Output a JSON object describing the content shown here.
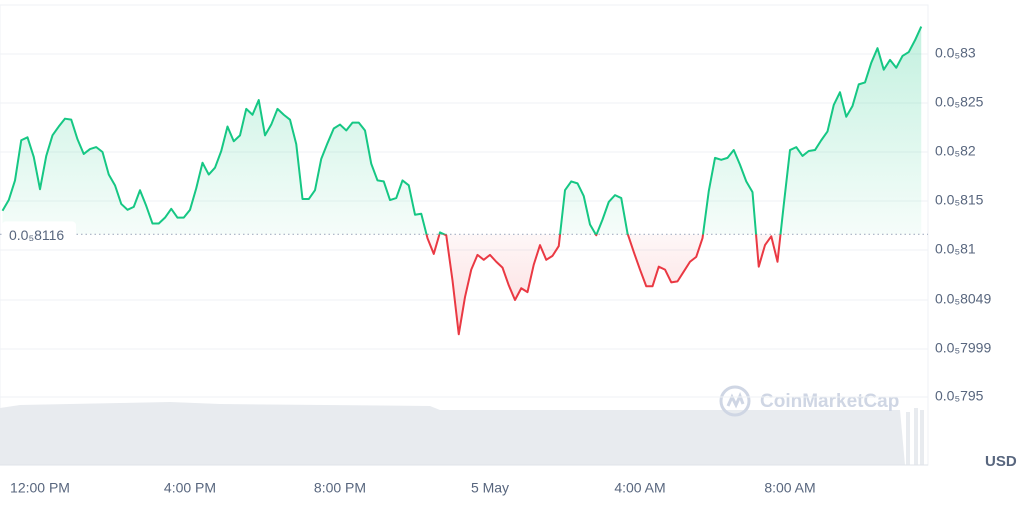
{
  "chart_data": {
    "type": "line",
    "y_label": "USD",
    "watermark": "CoinMarketCap",
    "up_color": "#16c784",
    "down_color": "#ea3943",
    "grid": true,
    "reference": {
      "value": 8.116e-06,
      "label": "0.0₅8116"
    },
    "ylim": [
      7.95e-06,
      8.35e-06
    ],
    "yticks": [
      {
        "value": 8.3e-06,
        "label": "0.0₅83"
      },
      {
        "value": 8.25e-06,
        "label": "0.0₅825"
      },
      {
        "value": 8.2e-06,
        "label": "0.0₅82"
      },
      {
        "value": 8.15e-06,
        "label": "0.0₅815"
      },
      {
        "value": 8.1e-06,
        "label": "0.0₅81"
      },
      {
        "value": 8.049e-06,
        "label": "0.0₅8049"
      },
      {
        "value": 7.999e-06,
        "label": "0.0₅7999"
      },
      {
        "value": 7.95e-06,
        "label": "0.0₅795"
      }
    ],
    "categories": [
      null,
      null,
      null,
      null,
      null,
      null,
      "12:00 PM",
      null,
      null,
      null,
      null,
      null,
      null,
      null,
      null,
      null,
      null,
      null,
      null,
      null,
      null,
      null,
      null,
      null,
      null,
      null,
      null,
      null,
      null,
      null,
      "4:00 PM",
      null,
      null,
      null,
      null,
      null,
      null,
      null,
      null,
      null,
      null,
      null,
      null,
      null,
      null,
      null,
      null,
      null,
      null,
      null,
      null,
      null,
      null,
      null,
      "8:00 PM",
      null,
      null,
      null,
      null,
      null,
      null,
      null,
      null,
      null,
      null,
      null,
      null,
      null,
      null,
      null,
      null,
      null,
      null,
      null,
      null,
      null,
      null,
      null,
      "5 May",
      null,
      null,
      null,
      null,
      null,
      null,
      null,
      null,
      null,
      null,
      null,
      null,
      null,
      null,
      null,
      null,
      null,
      null,
      null,
      null,
      null,
      null,
      null,
      "4:00 AM",
      null,
      null,
      null,
      null,
      null,
      null,
      null,
      null,
      null,
      null,
      null,
      null,
      null,
      null,
      null,
      null,
      null,
      null,
      null,
      null,
      null,
      null,
      null,
      "8:00 AM",
      null,
      null,
      null,
      null,
      null,
      null,
      null,
      null,
      null,
      null,
      null,
      null,
      null,
      null,
      null,
      null,
      null,
      null,
      null,
      null,
      null
    ],
    "values": [
      8.14e-06,
      8.151e-06,
      8.171e-06,
      8.212e-06,
      8.215e-06,
      8.195e-06,
      8.162e-06,
      8.196e-06,
      8.217e-06,
      8.226e-06,
      8.234e-06,
      8.233e-06,
      8.213e-06,
      8.198e-06,
      8.203e-06,
      8.205e-06,
      8.2e-06,
      8.177e-06,
      8.166e-06,
      8.147e-06,
      8.141e-06,
      8.144e-06,
      8.161e-06,
      8.145e-06,
      8.127e-06,
      8.127e-06,
      8.133e-06,
      8.142e-06,
      8.133e-06,
      8.133e-06,
      8.141e-06,
      8.163e-06,
      8.189e-06,
      8.177e-06,
      8.184e-06,
      8.201e-06,
      8.226e-06,
      8.211e-06,
      8.217e-06,
      8.244e-06,
      8.238e-06,
      8.253e-06,
      8.217e-06,
      8.228e-06,
      8.244e-06,
      8.238e-06,
      8.233e-06,
      8.208e-06,
      8.152e-06,
      8.152e-06,
      8.161e-06,
      8.193e-06,
      8.209e-06,
      8.224e-06,
      8.228e-06,
      8.222e-06,
      8.23e-06,
      8.23e-06,
      8.222e-06,
      8.188e-06,
      8.171e-06,
      8.17e-06,
      8.151e-06,
      8.153e-06,
      8.171e-06,
      8.166e-06,
      8.136e-06,
      8.137e-06,
      8.112e-06,
      8.096e-06,
      8.118e-06,
      8.115e-06,
      8.069e-06,
      8.014e-06,
      8.052e-06,
      8.08e-06,
      8.095e-06,
      8.09e-06,
      8.095e-06,
      8.088e-06,
      8.082e-06,
      8.064e-06,
      8.049e-06,
      8.061e-06,
      8.057e-06,
      8.085e-06,
      8.105e-06,
      8.09e-06,
      8.094e-06,
      8.104e-06,
      8.161e-06,
      8.17e-06,
      8.168e-06,
      8.155e-06,
      8.126e-06,
      8.115e-06,
      8.131e-06,
      8.149e-06,
      8.156e-06,
      8.153e-06,
      8.117e-06,
      8.098e-06,
      8.08e-06,
      8.063e-06,
      8.063e-06,
      8.083e-06,
      8.08e-06,
      8.067e-06,
      8.068e-06,
      8.078e-06,
      8.088e-06,
      8.093e-06,
      8.112e-06,
      8.16e-06,
      8.194e-06,
      8.192e-06,
      8.194e-06,
      8.202e-06,
      8.187e-06,
      8.17e-06,
      8.159e-06,
      8.083e-06,
      8.105e-06,
      8.114e-06,
      8.088e-06,
      8.146e-06,
      8.202e-06,
      8.205e-06,
      8.196e-06,
      8.201e-06,
      8.202e-06,
      8.212e-06,
      8.221e-06,
      8.248e-06,
      8.261e-06,
      8.236e-06,
      8.247e-06,
      8.269e-06,
      8.271e-06,
      8.291e-06,
      8.306e-06,
      8.284e-06,
      8.294e-06,
      8.286e-06,
      8.298e-06,
      8.302e-06,
      8.314e-06,
      8.328e-06
    ]
  }
}
